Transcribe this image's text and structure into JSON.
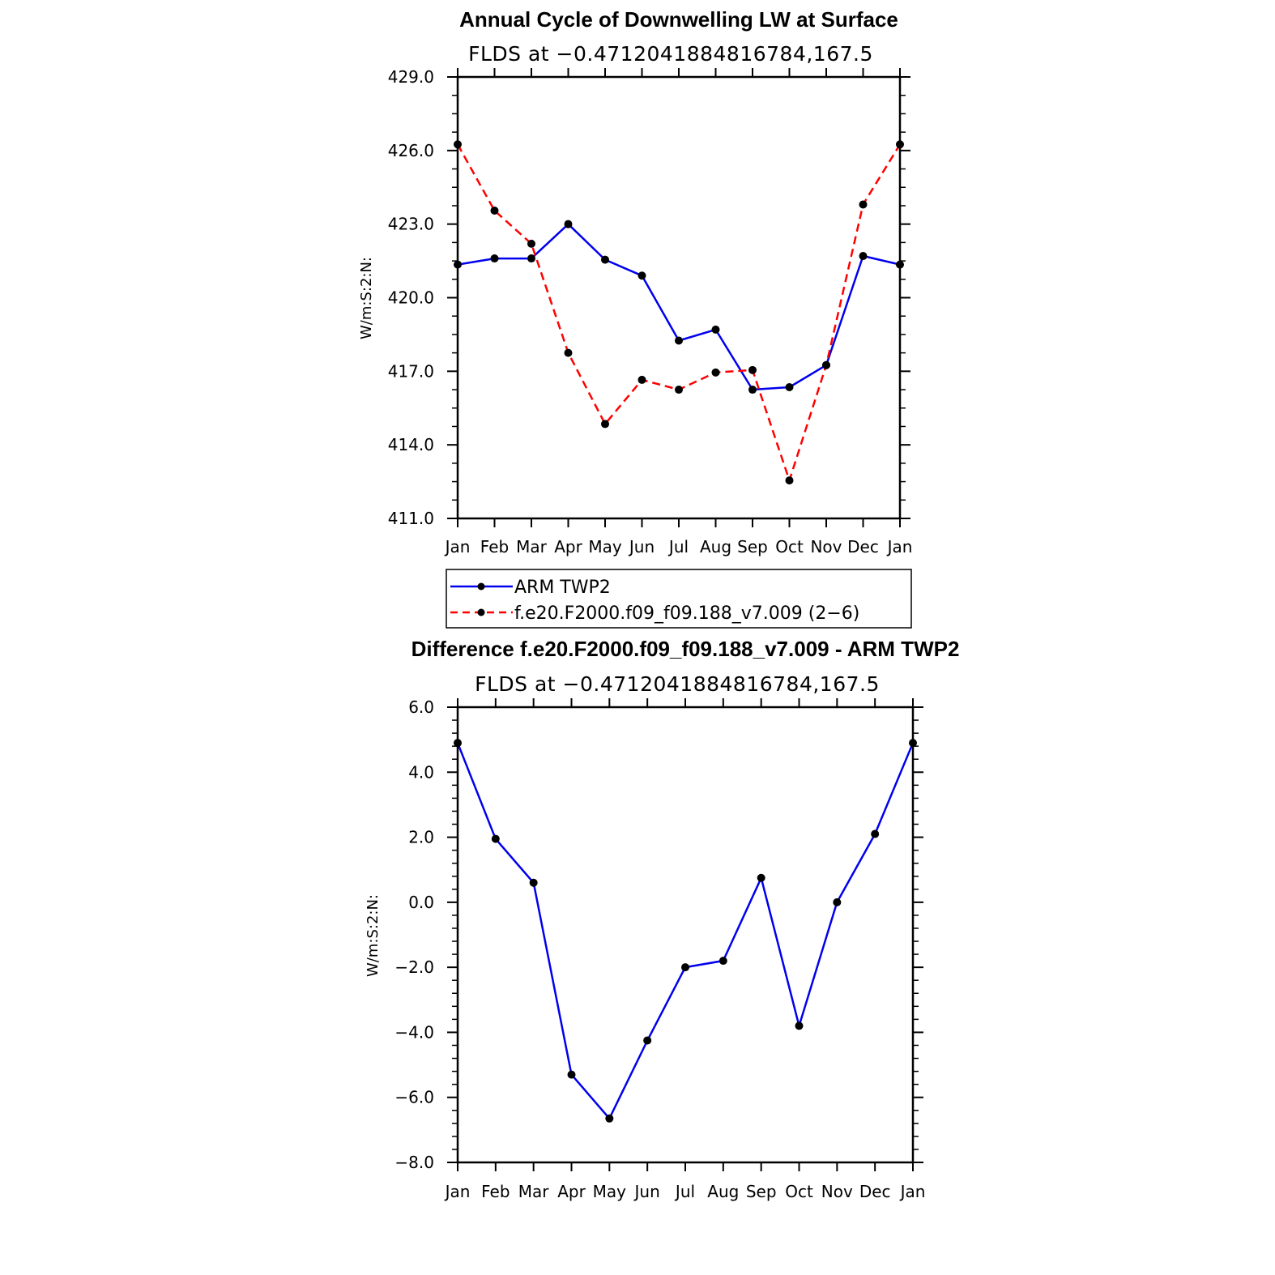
{
  "chart_data": [
    {
      "type": "line",
      "title": "Annual Cycle of Downwelling LW at Surface",
      "subtitle": "FLDS at −0.4712041884816784,167.5",
      "ylabel": "W/m:S:2:N:",
      "xlabel": "",
      "categories": [
        "Jan",
        "Feb",
        "Mar",
        "Apr",
        "May",
        "Jun",
        "Jul",
        "Aug",
        "Sep",
        "Oct",
        "Nov",
        "Dec",
        "Jan"
      ],
      "ylim": [
        411.0,
        429.0
      ],
      "yticks": [
        "411.0",
        "414.0",
        "417.0",
        "420.0",
        "423.0",
        "426.0",
        "429.0"
      ],
      "yticks_values": [
        411,
        414,
        417,
        420,
        423,
        426,
        429
      ],
      "series": [
        {
          "name": "ARM TWP2",
          "color": "#0000ee",
          "dash": "solid",
          "values": [
            421.35,
            421.6,
            421.6,
            423.0,
            421.55,
            420.9,
            418.25,
            418.7,
            416.25,
            416.35,
            417.25,
            421.7,
            421.35
          ]
        },
        {
          "name": "f.e20.F2000.f09_f09.188_v7.009 (2−6)",
          "color": "#ff0000",
          "dash": "dashed",
          "values": [
            426.25,
            423.55,
            422.2,
            417.75,
            414.85,
            416.65,
            416.25,
            416.95,
            417.05,
            412.55,
            417.25,
            423.8,
            426.25
          ]
        }
      ],
      "legend": [
        "ARM TWP2",
        "f.e20.F2000.f09_f09.188_v7.009 (2−6)"
      ],
      "legend_position": "below"
    },
    {
      "type": "line",
      "title": "Difference f.e20.F2000.f09_f09.188_v7.009 - ARM TWP2",
      "subtitle": "FLDS at −0.4712041884816784,167.5",
      "ylabel": "W/m:S:2:N:",
      "xlabel": "",
      "categories": [
        "Jan",
        "Feb",
        "Mar",
        "Apr",
        "May",
        "Jun",
        "Jul",
        "Aug",
        "Sep",
        "Oct",
        "Nov",
        "Dec",
        "Jan"
      ],
      "ylim": [
        -8.0,
        6.0
      ],
      "yticks": [
        "−8.0",
        "−6.0",
        "−4.0",
        "−2.0",
        "0.0",
        "2.0",
        "4.0",
        "6.0"
      ],
      "yticks_values": [
        -8,
        -6,
        -4,
        -2,
        0,
        2,
        4,
        6
      ],
      "series": [
        {
          "name": "Difference",
          "color": "#0000ee",
          "dash": "solid",
          "values": [
            4.9,
            1.95,
            0.6,
            -5.3,
            -6.65,
            -4.25,
            -2.0,
            -1.8,
            0.75,
            -3.8,
            0.0,
            2.1,
            4.9
          ]
        }
      ]
    }
  ]
}
